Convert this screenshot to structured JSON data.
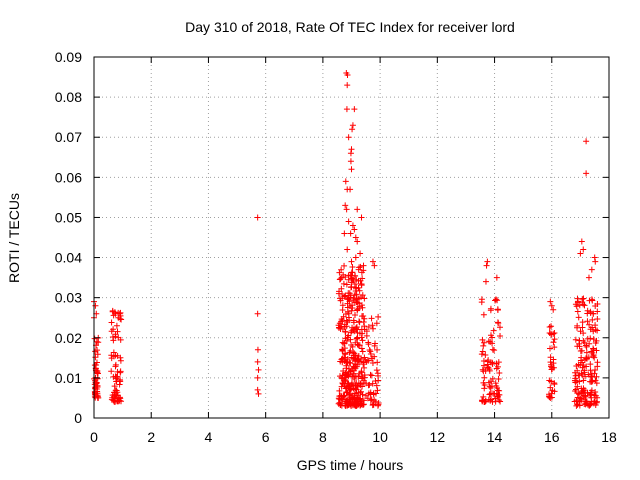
{
  "chart_data": {
    "type": "scatter",
    "title": "Day 310 of 2018, Rate Of TEC Index for receiver lord",
    "xlabel": "GPS time / hours",
    "ylabel": "ROTI / TECUs",
    "xlim": [
      0,
      18
    ],
    "ylim": [
      0,
      0.09
    ],
    "x_ticks": [
      0,
      2,
      4,
      6,
      8,
      10,
      12,
      14,
      16,
      18
    ],
    "x_tick_labels": [
      "0",
      "2",
      "4",
      "6",
      "8",
      "10",
      "12",
      "14",
      "16",
      "18"
    ],
    "y_ticks": [
      0,
      0.01,
      0.02,
      0.03,
      0.04,
      0.05,
      0.06,
      0.07,
      0.08,
      0.09
    ],
    "y_tick_labels": [
      "0",
      "0.01",
      "0.02",
      "0.03",
      "0.04",
      "0.05",
      "0.06",
      "0.07",
      "0.08",
      "0.09"
    ],
    "grid": true,
    "marker": "+",
    "marker_color": "#ff0000",
    "point_clusters": [
      {
        "x_range": [
          0.0,
          0.15
        ],
        "y_range": [
          0.005,
          0.02
        ],
        "count": 45
      },
      {
        "x_range": [
          0.6,
          0.95
        ],
        "y_range": [
          0.004,
          0.027
        ],
        "count": 70
      },
      {
        "x_range": [
          8.55,
          9.45
        ],
        "y_range": [
          0.003,
          0.038
        ],
        "count": 380
      },
      {
        "x_range": [
          9.45,
          9.95
        ],
        "y_range": [
          0.003,
          0.027
        ],
        "count": 60
      },
      {
        "x_range": [
          13.55,
          14.2
        ],
        "y_range": [
          0.004,
          0.03
        ],
        "count": 90
      },
      {
        "x_range": [
          15.9,
          16.1
        ],
        "y_range": [
          0.005,
          0.023
        ],
        "count": 35
      },
      {
        "x_range": [
          16.8,
          17.6
        ],
        "y_range": [
          0.003,
          0.03
        ],
        "count": 170
      }
    ],
    "points": [
      [
        0.0,
        0.029
      ],
      [
        0.05,
        0.028
      ],
      [
        0.08,
        0.026
      ],
      [
        0.0,
        0.025
      ],
      [
        0.1,
        0.019
      ],
      [
        0.75,
        0.026
      ],
      [
        0.85,
        0.025
      ],
      [
        0.9,
        0.026
      ],
      [
        0.8,
        0.023
      ],
      [
        5.72,
        0.05
      ],
      [
        5.72,
        0.026
      ],
      [
        5.73,
        0.017
      ],
      [
        5.72,
        0.014
      ],
      [
        5.75,
        0.012
      ],
      [
        5.72,
        0.01
      ],
      [
        5.72,
        0.007
      ],
      [
        5.75,
        0.006
      ],
      [
        8.82,
        0.086
      ],
      [
        8.86,
        0.0855
      ],
      [
        8.85,
        0.083
      ],
      [
        8.84,
        0.077
      ],
      [
        9.1,
        0.077
      ],
      [
        9.05,
        0.073
      ],
      [
        9.02,
        0.072
      ],
      [
        8.9,
        0.07
      ],
      [
        9.0,
        0.067
      ],
      [
        8.98,
        0.066
      ],
      [
        8.98,
        0.064
      ],
      [
        9.0,
        0.062
      ],
      [
        8.8,
        0.059
      ],
      [
        8.85,
        0.057
      ],
      [
        8.95,
        0.057
      ],
      [
        8.78,
        0.053
      ],
      [
        8.83,
        0.052
      ],
      [
        9.2,
        0.052
      ],
      [
        9.35,
        0.05
      ],
      [
        8.9,
        0.049
      ],
      [
        9.05,
        0.048
      ],
      [
        9.1,
        0.047
      ],
      [
        8.97,
        0.046
      ],
      [
        9.15,
        0.045
      ],
      [
        8.75,
        0.046
      ],
      [
        9.2,
        0.044
      ],
      [
        8.85,
        0.042
      ],
      [
        9.3,
        0.041
      ],
      [
        9.15,
        0.04
      ],
      [
        9.0,
        0.039
      ],
      [
        9.42,
        0.038
      ],
      [
        9.25,
        0.037
      ],
      [
        9.75,
        0.039
      ],
      [
        9.8,
        0.038
      ],
      [
        13.75,
        0.039
      ],
      [
        13.72,
        0.038
      ],
      [
        14.08,
        0.035
      ],
      [
        13.7,
        0.034
      ],
      [
        15.95,
        0.029
      ],
      [
        16.0,
        0.028
      ],
      [
        16.05,
        0.027
      ],
      [
        17.05,
        0.044
      ],
      [
        17.1,
        0.042
      ],
      [
        17.0,
        0.041
      ],
      [
        17.2,
        0.069
      ],
      [
        17.2,
        0.061
      ],
      [
        17.5,
        0.04
      ],
      [
        17.52,
        0.039
      ],
      [
        17.4,
        0.037
      ],
      [
        17.3,
        0.035
      ],
      [
        17.45,
        0.026
      ]
    ]
  }
}
